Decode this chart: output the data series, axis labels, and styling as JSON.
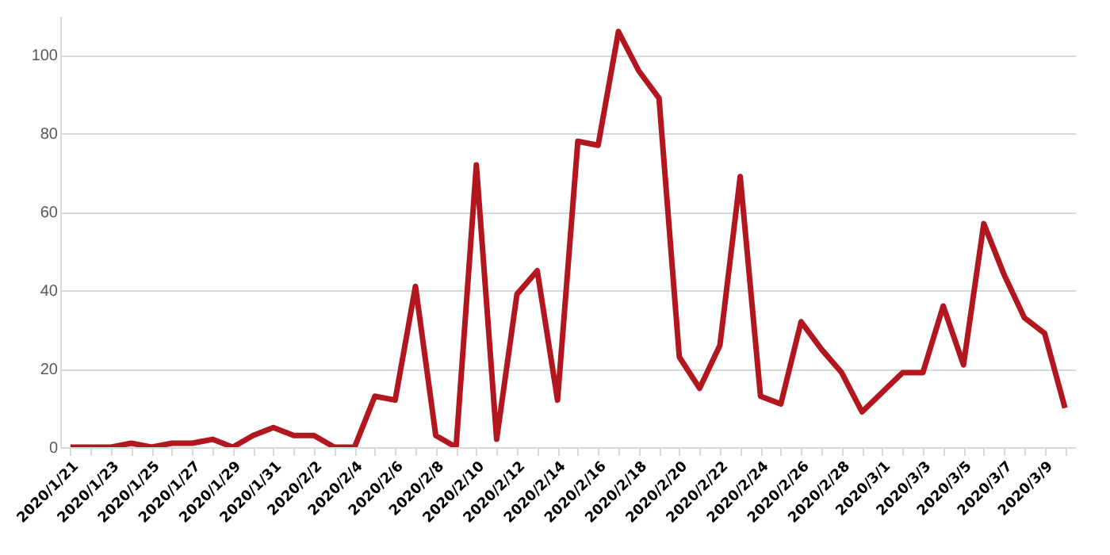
{
  "chart_data": {
    "type": "line",
    "categories": [
      "2020/1/21",
      null,
      "2020/1/23",
      null,
      "2020/1/25",
      null,
      "2020/1/27",
      null,
      "2020/1/29",
      null,
      "2020/1/31",
      null,
      "2020/2/2",
      null,
      "2020/2/4",
      null,
      "2020/2/6",
      null,
      "2020/2/8",
      null,
      "2020/2/10",
      null,
      "2020/2/12",
      null,
      "2020/2/14",
      null,
      "2020/2/16",
      null,
      "2020/2/18",
      null,
      "2020/2/20",
      null,
      "2020/2/22",
      null,
      "2020/2/24",
      null,
      "2020/2/26",
      null,
      "2020/2/28",
      null,
      "2020/3/1",
      null,
      "2020/3/3",
      null,
      "2020/3/5",
      null,
      "2020/3/7",
      null,
      "2020/3/9",
      null
    ],
    "series": [
      {
        "color": "#b2161e",
        "values": [
          0,
          0,
          0,
          1,
          0,
          1,
          1,
          2,
          0,
          3,
          5,
          3,
          3,
          0,
          0,
          13,
          12,
          41,
          3,
          0,
          72,
          2,
          39,
          45,
          12,
          78,
          77,
          106,
          96,
          89,
          23,
          15,
          26,
          69,
          13,
          11,
          32,
          25,
          19,
          9,
          14,
          19,
          19,
          36,
          21,
          57,
          44,
          33,
          29,
          10
        ]
      }
    ],
    "ylim": [
      0,
      110
    ],
    "yticks": [
      0,
      20,
      40,
      60,
      80,
      100
    ],
    "grid": "y",
    "marker": "none",
    "line_style": "solid",
    "legend": false
  }
}
